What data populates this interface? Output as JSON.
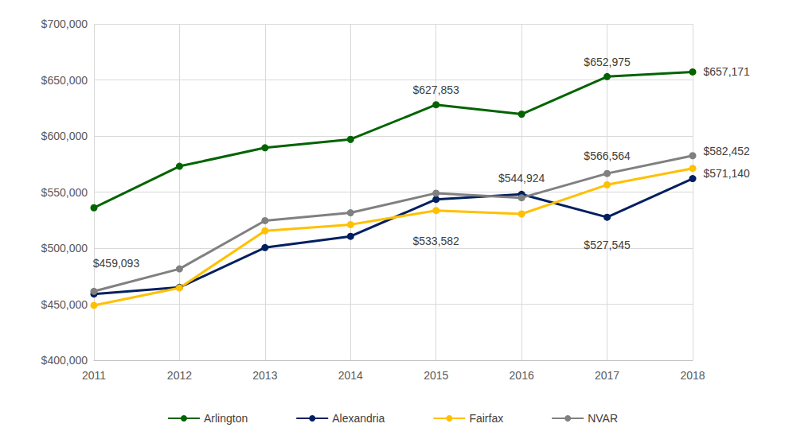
{
  "chart_data": {
    "type": "line",
    "categories": [
      "2011",
      "2012",
      "2013",
      "2014",
      "2015",
      "2016",
      "2017",
      "2018"
    ],
    "series": [
      {
        "name": "Arlington",
        "color": "#006400",
        "marker": "circle",
        "values": [
          536000,
          573000,
          589500,
          597000,
          627853,
          619500,
          652975,
          657171
        ],
        "value_labels": [
          null,
          null,
          null,
          null,
          "$627,853",
          null,
          "$652,975",
          "$657,171"
        ]
      },
      {
        "name": "Alexandria",
        "color": "#002060",
        "marker": "circle",
        "values": [
          459093,
          465000,
          500500,
          510500,
          543500,
          548000,
          527545,
          562000
        ],
        "value_labels": [
          "$459,093",
          null,
          null,
          null,
          null,
          null,
          "$527,545",
          null
        ]
      },
      {
        "name": "Fairfax",
        "color": "#FFC000",
        "marker": "circle",
        "values": [
          449000,
          464500,
          515500,
          521000,
          533582,
          530500,
          556500,
          571140
        ],
        "value_labels": [
          null,
          null,
          null,
          null,
          "$533,582",
          null,
          null,
          "$571,140"
        ]
      },
      {
        "name": "NVAR",
        "color": "#808080",
        "marker": "circle",
        "values": [
          461500,
          481500,
          524500,
          531500,
          549000,
          544924,
          566564,
          582452
        ],
        "value_labels": [
          null,
          null,
          null,
          null,
          null,
          "$544,924",
          "$566,564",
          "$582,452"
        ]
      }
    ],
    "ylim": [
      400000,
      700000
    ],
    "yticks": [
      {
        "value": 400000,
        "label": "$400,000"
      },
      {
        "value": 450000,
        "label": "$450,000"
      },
      {
        "value": 500000,
        "label": "$500,000"
      },
      {
        "value": 550000,
        "label": "$550,000"
      },
      {
        "value": 600000,
        "label": "$600,000"
      },
      {
        "value": 650000,
        "label": "$650,000"
      },
      {
        "value": 700000,
        "label": "$700,000"
      }
    ],
    "grid": true,
    "legend": "bottom",
    "data_labels": true
  }
}
